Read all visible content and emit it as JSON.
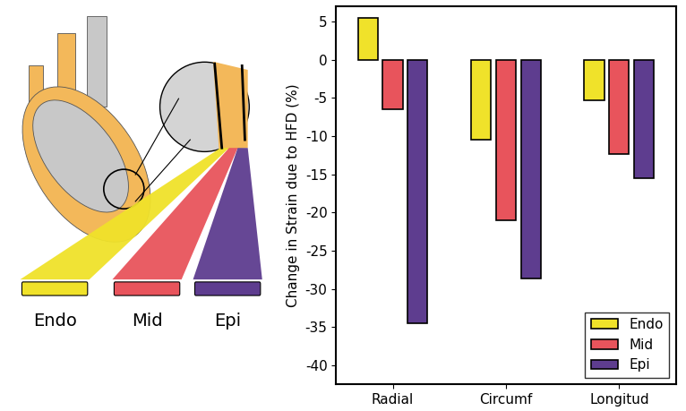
{
  "chart_data": {
    "type": "bar",
    "categories": [
      "Radial",
      "Circumf",
      "Longitud"
    ],
    "y_label": "Change in Strain due to HFD (%)",
    "series": [
      {
        "name": "Endo",
        "color": "#f0e22a",
        "values": [
          5.5,
          -10.5,
          -5.3
        ]
      },
      {
        "name": "Mid",
        "color": "#e8545c",
        "values": [
          -6.5,
          -21.0,
          -12.3
        ]
      },
      {
        "name": "Epi",
        "color": "#5e3d8f",
        "values": [
          -34.5,
          -28.7,
          -15.5
        ]
      }
    ],
    "ylim": [
      -42.5,
      7
    ],
    "yticks": [
      -40,
      -35,
      -30,
      -25,
      -20,
      -15,
      -10,
      -5,
      0,
      5
    ],
    "legend": "lower right",
    "grid": false
  }
}
